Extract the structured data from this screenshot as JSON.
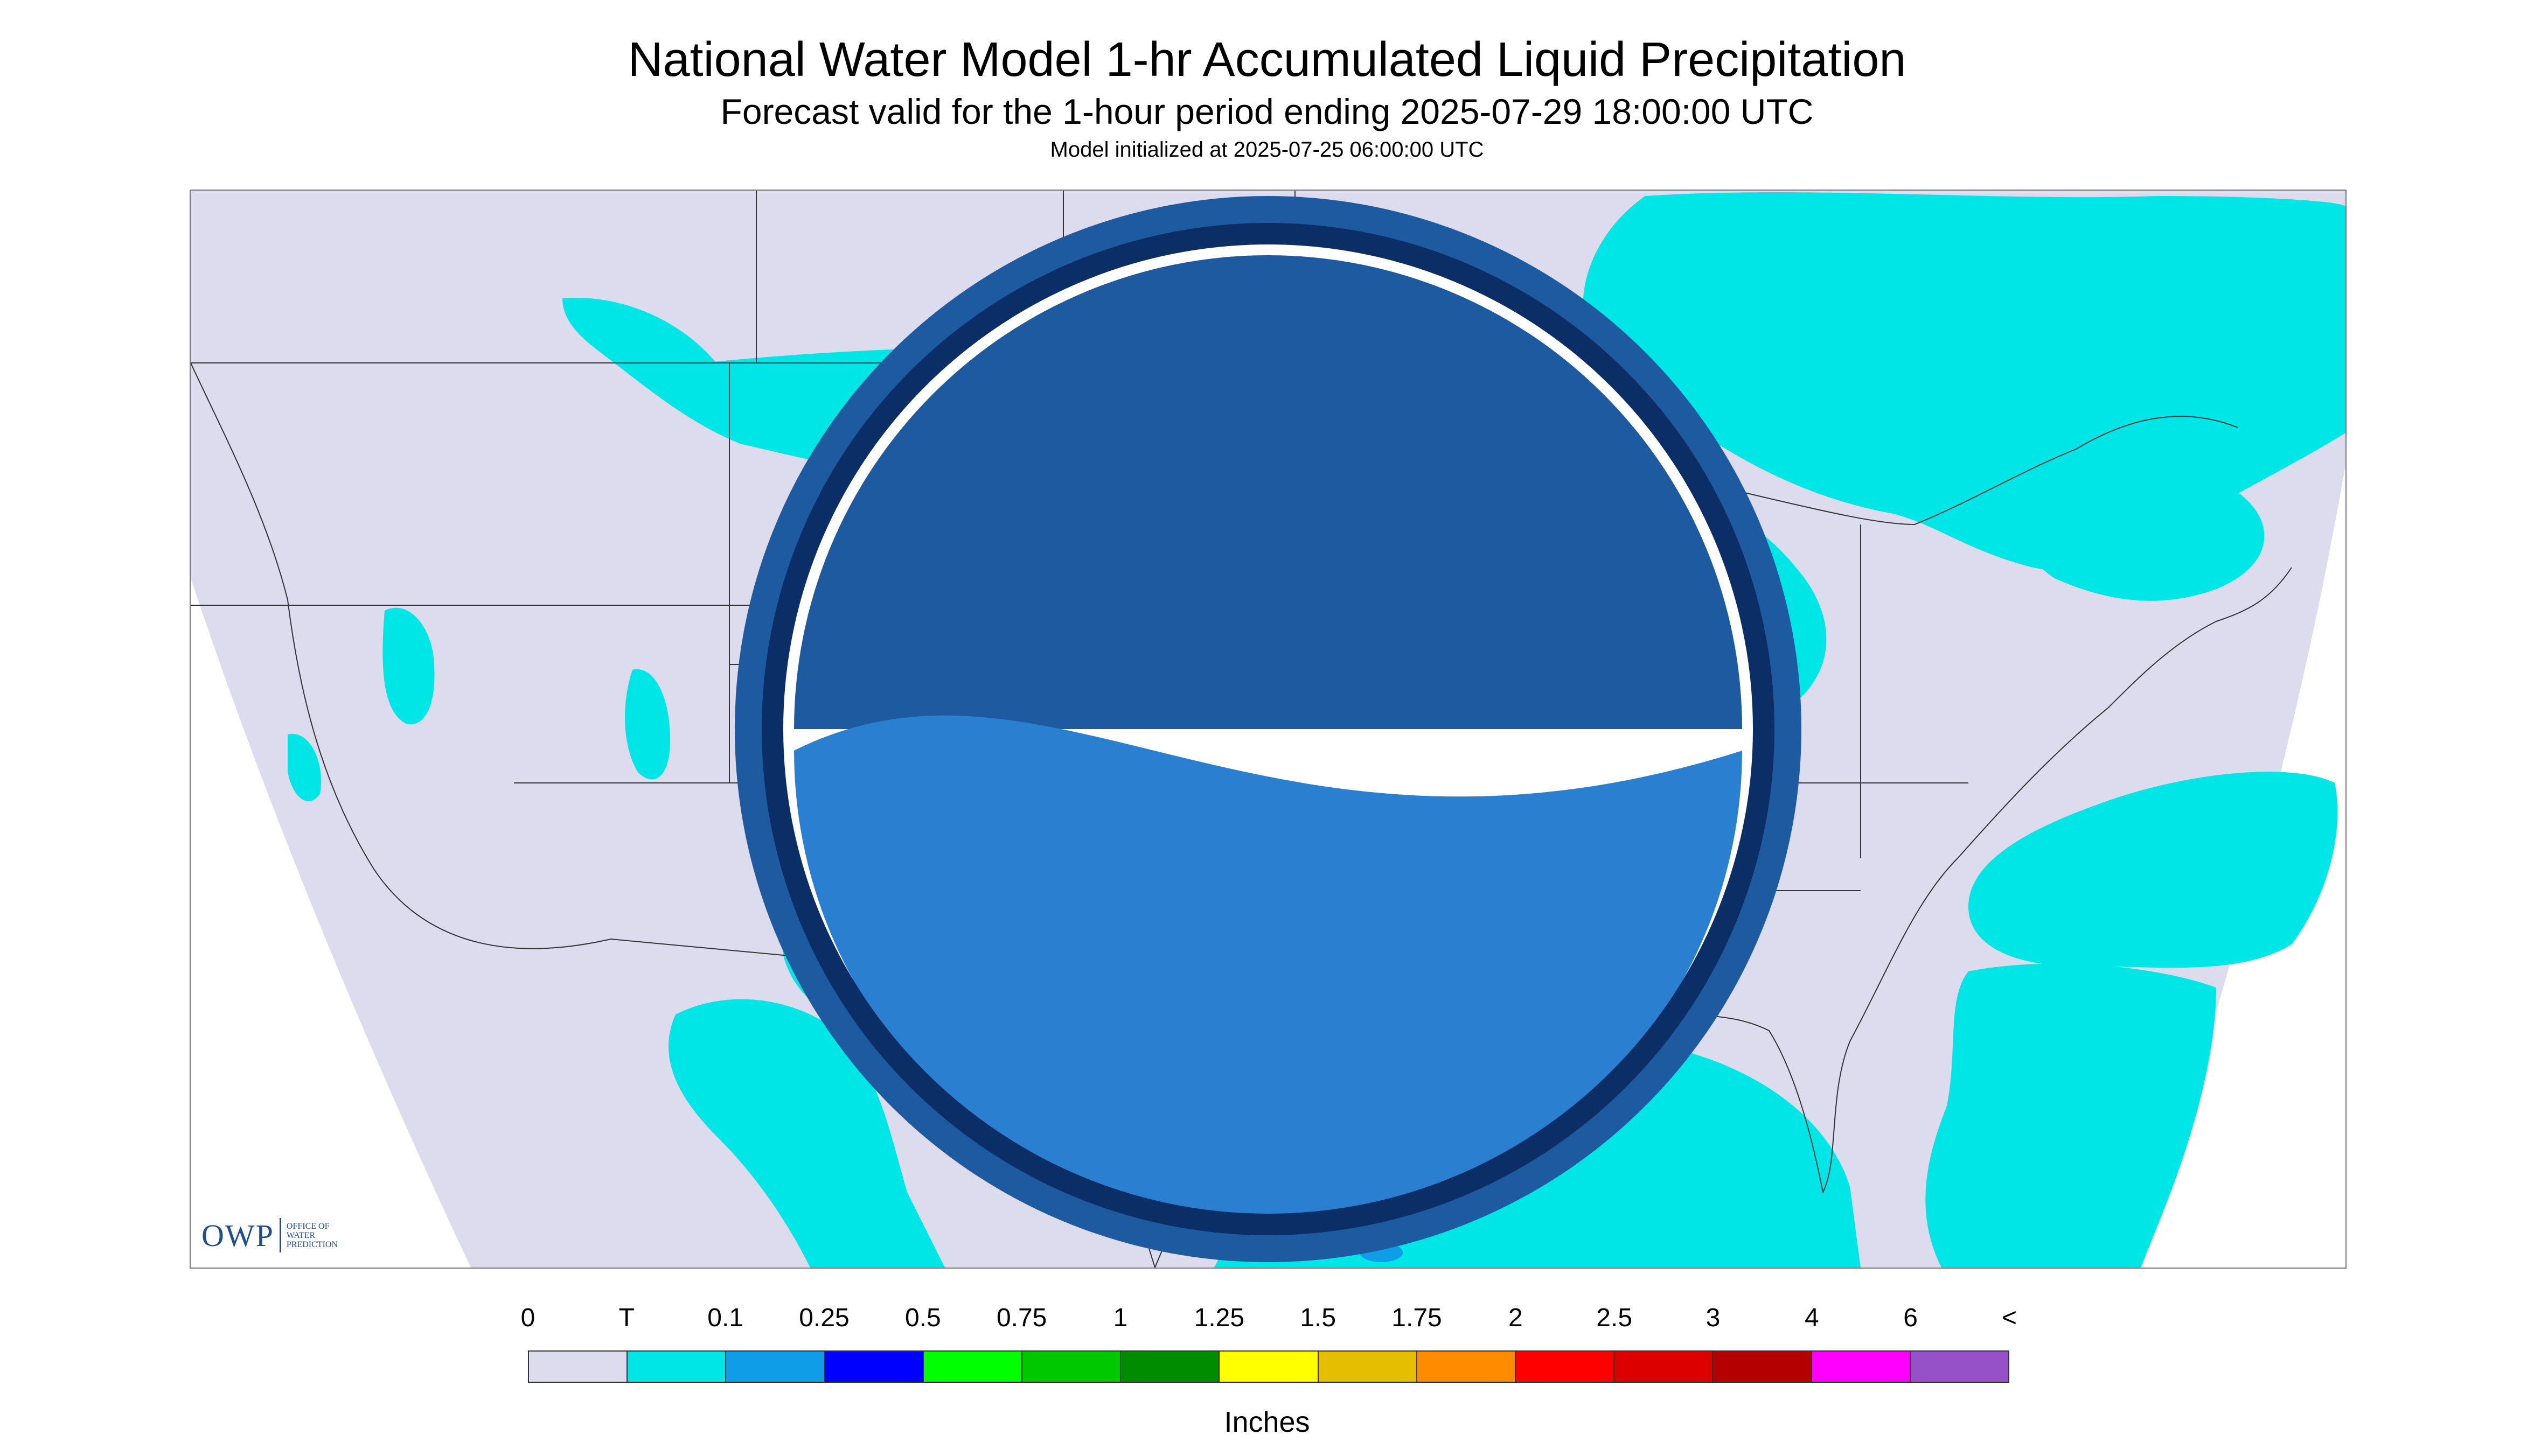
{
  "header": {
    "title": "National Water Model 1-hr Accumulated Liquid Precipitation",
    "subtitle": "Forecast valid for the 1-hour period ending 2025-07-29 18:00:00 UTC",
    "init": "Model initialized at 2025-07-25 06:00:00 UTC"
  },
  "map": {
    "background_color": "#ffffff",
    "domain_color": "#dcdcee",
    "boundary_color": "#333333",
    "precip_light_color": "#00e5e5",
    "precip_medium_color": "#0f9de8",
    "precip_heavy_color": "#0000ff"
  },
  "logos": {
    "owp_mark": "OWP",
    "owp_text": "OFFICE OF\nWATER\nPREDICTION",
    "noaa_icon": "noaa-logo-icon"
  },
  "legend": {
    "labels": [
      "0",
      "T",
      "0.1",
      "0.25",
      "0.5",
      "0.75",
      "1",
      "1.25",
      "1.5",
      "1.75",
      "2",
      "2.5",
      "3",
      "4",
      "6",
      "<"
    ],
    "colors": [
      "#dcdcee",
      "#00e5e5",
      "#0f9de8",
      "#0000ff",
      "#00ff00",
      "#00c800",
      "#008c00",
      "#ffff00",
      "#e6be00",
      "#ff8c00",
      "#ff0000",
      "#dc0000",
      "#b40000",
      "#ff00ff",
      "#9650c8"
    ],
    "units": "Inches"
  }
}
